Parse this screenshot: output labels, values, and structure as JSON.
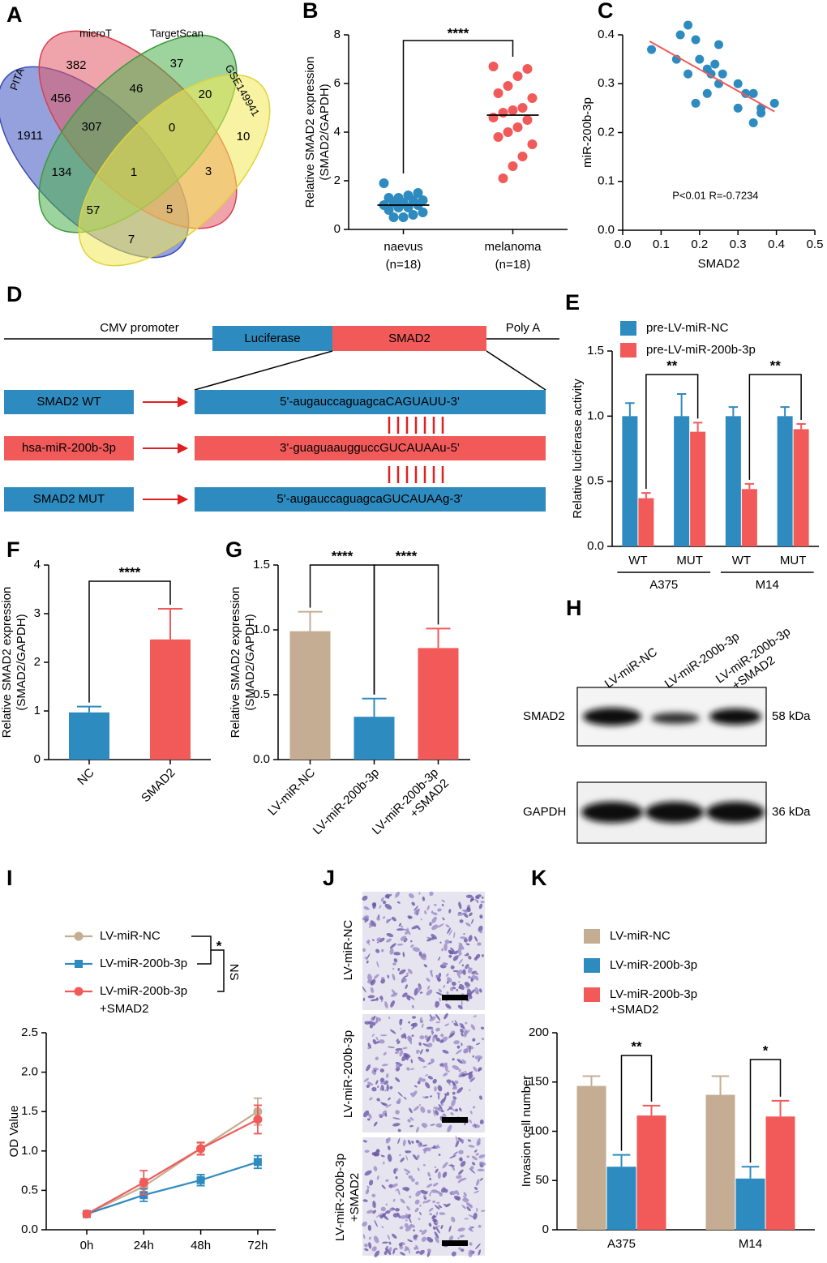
{
  "venn": {
    "panel": "A",
    "sets": [
      "PITA",
      "microT",
      "TargetScan",
      "GSE149941"
    ],
    "counts": [
      "382",
      "37",
      "1911",
      "456",
      "46",
      "20",
      "10",
      "307",
      "0",
      "134",
      "1",
      "3",
      "57",
      "5",
      "7"
    ]
  },
  "construct": {
    "panel": "D",
    "segments": [
      "CMV promoter",
      "Luciferase",
      "SMAD2",
      "Poly A"
    ],
    "rows": [
      {
        "label": "SMAD2 WT",
        "sequence": "5'-augauccaguagcaCAGUAUU-3'"
      },
      {
        "label": "hsa-miR-200b-3p",
        "sequence": "3'-guaguaaugguccGUCAUAAu-5'"
      },
      {
        "label": "SMAD2 MUT",
        "sequence": "5'-augauccaguagcaGUCAUAAg-3'"
      }
    ]
  },
  "blot": {
    "panel": "H",
    "lanes": [
      "LV-miR-NC",
      "LV-miR-200b-3p",
      [
        "LV-miR-200b-3p",
        "+SMAD2"
      ]
    ],
    "proteins": [
      "SMAD2",
      "GAPDH"
    ],
    "sizes": [
      "58 kDa",
      "36 kDa"
    ]
  },
  "images": {
    "panel": "J",
    "labels": [
      "LV-miR-NC",
      "LV-miR-200b-3p",
      [
        "LV-miR-200b-3p",
        "+SMAD2"
      ]
    ]
  },
  "chart_data": [
    {
      "panel": "B",
      "type": "strip",
      "ylabel": [
        "Relative SMAD2 expression",
        "(SMAD2/GAPDH)"
      ],
      "categories": [
        "naevus",
        "melanoma"
      ],
      "category_notes": [
        "(n=18)",
        "(n=18)"
      ],
      "series": [
        {
          "color": "#2e8bc0",
          "values": [
            1.9,
            1.5,
            1.4,
            1.3,
            1.3,
            1.2,
            1.2,
            1.1,
            1.1,
            1.0,
            1.0,
            0.9,
            0.9,
            0.8,
            0.7,
            0.6,
            0.5,
            0.5
          ],
          "mean": 1.0
        },
        {
          "color": "#f25a5a",
          "values": [
            6.7,
            6.6,
            6.3,
            5.9,
            5.6,
            5.4,
            5.0,
            4.9,
            4.8,
            4.6,
            4.5,
            4.2,
            4.0,
            3.8,
            3.5,
            3.0,
            2.6,
            2.1
          ],
          "mean": 4.7
        }
      ],
      "ylim": [
        0,
        8
      ],
      "yticks": [
        0,
        2,
        4,
        6,
        8
      ],
      "significance": [
        "****"
      ]
    },
    {
      "panel": "C",
      "type": "scatter",
      "xlabel": "SMAD2",
      "ylabel": "miR-200b-3p",
      "color": "#2e8bc0",
      "x": [
        0.075,
        0.15,
        0.17,
        0.14,
        0.19,
        0.17,
        0.2,
        0.22,
        0.23,
        0.24,
        0.25,
        0.19,
        0.22,
        0.26,
        0.25,
        0.3,
        0.3,
        0.32,
        0.34,
        0.34,
        0.36,
        0.36,
        0.395
      ],
      "y": [
        0.37,
        0.4,
        0.42,
        0.35,
        0.39,
        0.32,
        0.35,
        0.33,
        0.32,
        0.34,
        0.38,
        0.26,
        0.28,
        0.32,
        0.3,
        0.3,
        0.25,
        0.28,
        0.28,
        0.22,
        0.24,
        0.25,
        0.26
      ],
      "trendline": {
        "color": "#f25a5a",
        "x": [
          0.07,
          0.395
        ],
        "y": [
          0.387,
          0.243
        ]
      },
      "xlim": [
        0,
        0.5
      ],
      "xticks": [
        {
          "value": 0,
          "label": "0.0"
        },
        0.1,
        0.2,
        0.3,
        0.4,
        0.5
      ],
      "ylim": [
        0,
        0.4
      ],
      "yticks": [
        {
          "value": 0,
          "label": "0.0"
        },
        0.1,
        0.2,
        0.3,
        0.4
      ],
      "annotations": [
        "P<0.01",
        "R=-0.7234"
      ]
    },
    {
      "panel": "E",
      "type": "bar",
      "ylabel": "Relative luciferase activity",
      "categories": [
        "WT",
        "MUT",
        "WT",
        "MUT"
      ],
      "groups": [
        "A375",
        "M14"
      ],
      "series": [
        {
          "name": "pre-LV-miR-NC",
          "color": "#2e8bc0",
          "values": [
            1.0,
            1.0,
            1.0,
            1.0
          ],
          "errors": [
            0.1,
            0.17,
            0.07,
            0.07
          ]
        },
        {
          "name": "pre-LV-miR-200b-3p",
          "color": "#f25a5a",
          "values": [
            0.37,
            0.88,
            0.44,
            0.9
          ],
          "errors": [
            0.04,
            0.07,
            0.04,
            0.04
          ]
        }
      ],
      "ylim": [
        0,
        1.5
      ],
      "yticks": [
        {
          "value": 0,
          "label": "0.0"
        },
        0.5,
        {
          "value": 1,
          "label": "1.0"
        },
        1.5
      ],
      "significance": [
        "**",
        "**"
      ]
    },
    {
      "panel": "F",
      "type": "bar",
      "ylabel": [
        "Relative SMAD2 expression",
        "(SMAD2/GAPDH)"
      ],
      "categories": [
        "NC",
        "SMAD2"
      ],
      "values": [
        0.97,
        2.47
      ],
      "errors": [
        0.12,
        0.63
      ],
      "colors": [
        "#2e8bc0",
        "#f25a5a"
      ],
      "ylim": [
        0,
        4
      ],
      "yticks": [
        0,
        1,
        2,
        3,
        4
      ],
      "significance": [
        "****"
      ]
    },
    {
      "panel": "G",
      "type": "bar",
      "ylabel": [
        "Relative SMAD2 expression",
        "(SMAD2/GAPDH)"
      ],
      "categories": [
        "LV-miR-NC",
        "LV-miR-200b-3p",
        [
          "LV-miR-200b-3p",
          "+SMAD2"
        ]
      ],
      "values": [
        0.99,
        0.33,
        0.86
      ],
      "errors": [
        0.15,
        0.14,
        0.15
      ],
      "colors": [
        "#c4ad93",
        "#2e8bc0",
        "#f25a5a"
      ],
      "ylim": [
        0,
        1.5
      ],
      "yticks": [
        {
          "value": 0,
          "label": "0.0"
        },
        0.5,
        {
          "value": 1,
          "label": "1.0"
        },
        1.5
      ],
      "significance": [
        "****",
        "****"
      ]
    },
    {
      "panel": "I",
      "type": "line",
      "ylabel": "OD Value",
      "categories": [
        "0h",
        "24h",
        "48h",
        "72h"
      ],
      "series": [
        {
          "name": "LV-miR-NC",
          "color": "#c4ad93",
          "marker": "circle",
          "values": [
            0.2,
            0.55,
            1.03,
            1.5
          ],
          "errors": [
            0.03,
            0.1,
            0.07,
            0.17
          ]
        },
        {
          "name": "LV-miR-200b-3p",
          "color": "#2e8bc0",
          "marker": "square",
          "values": [
            0.2,
            0.44,
            0.63,
            0.86
          ],
          "errors": [
            0.03,
            0.08,
            0.07,
            0.08
          ]
        },
        {
          "name": [
            "LV-miR-200b-3p",
            "+SMAD2"
          ],
          "color": "#f25a5a",
          "marker": "circle",
          "values": [
            0.2,
            0.6,
            1.03,
            1.4
          ],
          "errors": [
            0.03,
            0.15,
            0.08,
            0.18
          ]
        }
      ],
      "ylim": [
        0,
        2.5
      ],
      "yticks": [
        {
          "value": 0,
          "label": "0.0"
        },
        0.5,
        {
          "value": 1,
          "label": "1.0"
        },
        1.5,
        {
          "value": 2,
          "label": "2.0"
        },
        2.5
      ],
      "significance": [
        "*",
        "NS"
      ]
    },
    {
      "panel": "K",
      "type": "bar",
      "ylabel": "Invasion cell number",
      "categories": [
        "A375",
        "M14"
      ],
      "series": [
        {
          "name": "LV-miR-NC",
          "color": "#c4ad93",
          "values": [
            146,
            137
          ],
          "errors": [
            10,
            19
          ]
        },
        {
          "name": "LV-miR-200b-3p",
          "color": "#2e8bc0",
          "values": [
            64,
            52
          ],
          "errors": [
            12,
            12
          ]
        },
        {
          "name": [
            "LV-miR-200b-3p",
            "+SMAD2"
          ],
          "color": "#f25a5a",
          "values": [
            116,
            115
          ],
          "errors": [
            10,
            16
          ]
        }
      ],
      "ylim": [
        0,
        200
      ],
      "yticks": [
        0,
        50,
        100,
        150,
        200
      ],
      "significance": [
        "**",
        "*"
      ]
    }
  ]
}
